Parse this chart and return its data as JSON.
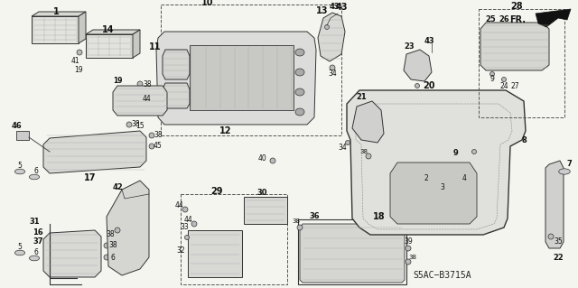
{
  "background_color": "#f5f5f0",
  "diagram_ref": "S5AC−B3715A",
  "fr_label": "FR.",
  "label_color": "#111111",
  "line_color": "#333333",
  "hatch_color": "#888888"
}
